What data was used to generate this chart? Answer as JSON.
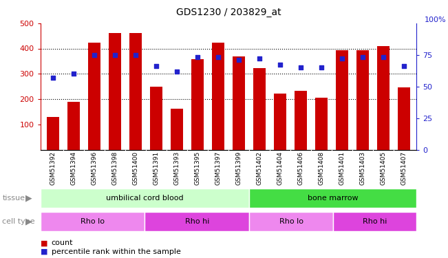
{
  "title": "GDS1230 / 203829_at",
  "samples": [
    "GSM51392",
    "GSM51394",
    "GSM51396",
    "GSM51398",
    "GSM51400",
    "GSM51391",
    "GSM51393",
    "GSM51395",
    "GSM51397",
    "GSM51399",
    "GSM51402",
    "GSM51404",
    "GSM51406",
    "GSM51408",
    "GSM51401",
    "GSM51403",
    "GSM51405",
    "GSM51407"
  ],
  "counts": [
    130,
    188,
    422,
    460,
    460,
    248,
    163,
    357,
    422,
    370,
    322,
    223,
    232,
    205,
    393,
    393,
    410,
    247
  ],
  "percentiles": [
    57,
    60,
    75,
    75,
    75,
    66,
    62,
    73,
    73,
    71,
    72,
    67,
    65,
    65,
    72,
    73,
    73,
    66
  ],
  "ylim_left": [
    0,
    500
  ],
  "ylim_right": [
    0,
    100
  ],
  "yticks_left": [
    100,
    200,
    300,
    400,
    500
  ],
  "yticks_right": [
    0,
    25,
    50,
    75
  ],
  "bar_color": "#cc0000",
  "dot_color": "#2222cc",
  "tissue_groups": [
    {
      "label": "umbilical cord blood",
      "start": 0,
      "end": 10,
      "color": "#ccffcc"
    },
    {
      "label": "bone marrow",
      "start": 10,
      "end": 18,
      "color": "#44dd44"
    }
  ],
  "cell_type_groups": [
    {
      "label": "Rho lo",
      "start": 0,
      "end": 5,
      "color": "#ee88ee"
    },
    {
      "label": "Rho hi",
      "start": 5,
      "end": 10,
      "color": "#dd44dd"
    },
    {
      "label": "Rho lo",
      "start": 10,
      "end": 14,
      "color": "#ee88ee"
    },
    {
      "label": "Rho hi",
      "start": 14,
      "end": 18,
      "color": "#dd44dd"
    }
  ],
  "legend_count_label": "count",
  "legend_pct_label": "percentile rank within the sample",
  "bar_color_legend": "#cc0000",
  "dot_color_legend": "#2222cc",
  "bar_width": 0.6,
  "background_color": "#ffffff",
  "plot_bg_color": "#ffffff",
  "xticklabel_bg": "#dddddd",
  "grid_color": "#000000",
  "title_fontsize": 10,
  "axis_label_color_left": "#cc0000",
  "axis_label_color_right": "#2222cc",
  "right_axis_top_label": "100%"
}
